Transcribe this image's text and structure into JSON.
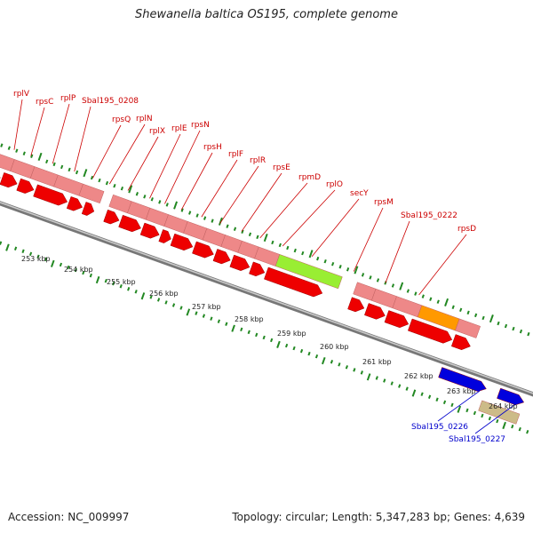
{
  "title": "Shewanella baltica OS195, complete genome",
  "footer": {
    "accession": "Accession: NC_009997",
    "summary": "Topology: circular; Length: 5,347,283 bp; Genes: 4,639"
  },
  "colors": {
    "cds": "#ee0000",
    "rna": "#ee8888",
    "highlight_green": "#99ee33",
    "highlight_orange": "#ff9900",
    "blue_gene": "#0000dd",
    "tan_gene": "#ccbb88",
    "tick": "#228822",
    "backbone": "#999999"
  },
  "gene_labels_red": [
    "rplV",
    "rpsC",
    "rplP",
    "Sbal195_0208",
    "rpsQ",
    "rplN",
    "rplX",
    "rplE",
    "rpsN",
    "rpsH",
    "rplF",
    "rplR",
    "rpsE",
    "rpmD",
    "rplO",
    "secY",
    "rpsM",
    "Sbal195_0222",
    "rpsD"
  ],
  "gene_labels_blue": [
    "Sbal195_0226",
    "Sbal195_0227"
  ],
  "kbp_labels": [
    "253 kbp",
    "254 kbp",
    "255 kbp",
    "256 kbp",
    "257 kbp",
    "258 kbp",
    "259 kbp",
    "260 kbp",
    "261 kbp",
    "262 kbp",
    "263 kbp",
    "264 kbp"
  ]
}
